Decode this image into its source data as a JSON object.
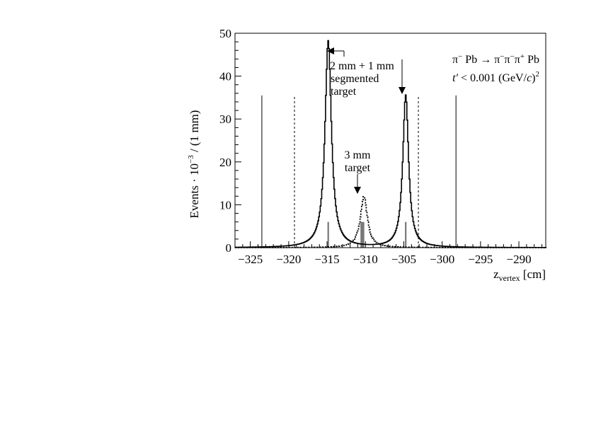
{
  "chart_data": {
    "type": "histogram",
    "xlim": [
      -327,
      -286.5
    ],
    "ylim": [
      0,
      50
    ],
    "x_ticks": [
      "-325",
      "-320",
      "-315",
      "-310",
      "-305",
      "-300",
      "-295",
      "-290"
    ],
    "y_ticks": [
      "0",
      "10",
      "20",
      "30",
      "40",
      "50"
    ],
    "xlabel": {
      "main": "z",
      "sub": "vertex",
      "unit": " [cm]"
    },
    "ylabel": {
      "pre": "Events · 10",
      "sup": "−3",
      "post": " / (1 mm)"
    },
    "legend_text": {
      "reaction": {
        "pi": "π",
        "minus": "−",
        "pb": " Pb → ",
        "plus": "+",
        "end": " Pb"
      },
      "cut": {
        "t": "t′",
        "lt": " < 0.001 (GeV/",
        "c": "c",
        "close": ")",
        "sq": "2"
      }
    },
    "annotations": {
      "segmented": [
        "2 mm + 1 mm",
        "segmented",
        "target"
      ],
      "single": [
        "3 mm",
        "target"
      ]
    },
    "series": [
      {
        "style": "solid",
        "peaks": [
          {
            "x0": -314.85,
            "amp": 48.2,
            "gamma": 0.5
          },
          {
            "x0": -304.75,
            "amp": 35.5,
            "gamma": 0.45
          }
        ]
      },
      {
        "style": "dotted",
        "peaks": [
          {
            "x0": -310.2,
            "amp": 12.0,
            "gamma": 0.55
          }
        ]
      }
    ],
    "target_marks": [
      {
        "x": -314.85,
        "height": 6,
        "width": 0.2
      },
      {
        "x": -310.4,
        "height": 6,
        "width": 0.5
      },
      {
        "x": -304.75,
        "height": 6,
        "width": 0.2
      }
    ],
    "cut_lines": [
      {
        "x": -323.5,
        "style": "solid",
        "top": 35.5
      },
      {
        "x": -319.25,
        "style": "dashed",
        "top": 35.5
      },
      {
        "x": -303.1,
        "style": "dashed",
        "top": 35.5
      },
      {
        "x": -298.2,
        "style": "solid",
        "top": 35.5
      }
    ]
  }
}
